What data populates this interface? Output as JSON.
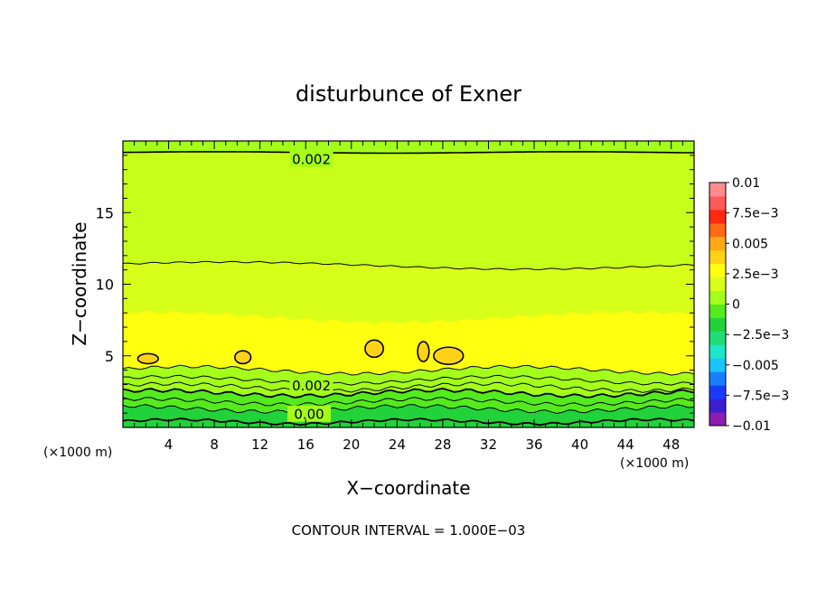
{
  "chart_data": {
    "type": "heatmap",
    "title": "disturbunce of Exner",
    "xlabel": "X−coordinate",
    "ylabel": "Z−coordinate",
    "x_unit": "(×1000 m)",
    "x_unit_right": "(×1000 m)",
    "xlim": [
      0,
      50
    ],
    "ylim": [
      0,
      20
    ],
    "x_ticks": [
      {
        "value": 4,
        "label": "4"
      },
      {
        "value": 8,
        "label": "8"
      },
      {
        "value": 12,
        "label": "12"
      },
      {
        "value": 16,
        "label": "16"
      },
      {
        "value": 20,
        "label": "20"
      },
      {
        "value": 24,
        "label": "24"
      },
      {
        "value": 28,
        "label": "28"
      },
      {
        "value": 32,
        "label": "32"
      },
      {
        "value": 36,
        "label": "36"
      },
      {
        "value": 40,
        "label": "40"
      },
      {
        "value": 44,
        "label": "44"
      },
      {
        "value": 48,
        "label": "48"
      }
    ],
    "y_ticks": [
      {
        "value": 5,
        "label": "5"
      },
      {
        "value": 10,
        "label": "10"
      },
      {
        "value": 15,
        "label": "15"
      }
    ],
    "colorbar": {
      "min": -0.01,
      "max": 0.01,
      "labels": [
        {
          "value": 0.01,
          "label": "0.01"
        },
        {
          "value": 0.0075,
          "label": "7.5e−3"
        },
        {
          "value": 0.005,
          "label": "0.005"
        },
        {
          "value": 0.0025,
          "label": "2.5e−3"
        },
        {
          "value": 0,
          "label": "0"
        },
        {
          "value": -0.0025,
          "label": "−2.5e−3"
        },
        {
          "value": -0.005,
          "label": "−0.005"
        },
        {
          "value": -0.0075,
          "label": "−7.5e−3"
        },
        {
          "value": -0.01,
          "label": "−0.01"
        }
      ],
      "colors": [
        "#8a1fb0",
        "#3a1fd0",
        "#1a3aff",
        "#1a7fff",
        "#19c4ff",
        "#1ee6c8",
        "#22dc7a",
        "#22d23a",
        "#55ea1e",
        "#a4ff1a",
        "#d8ff1a",
        "#ffff10",
        "#ffd218",
        "#ffaa14",
        "#ff6a14",
        "#ff2a10",
        "#ff5a5a",
        "#ff8c8c"
      ]
    },
    "contour_labels": [
      {
        "text": "0.002",
        "x": 16.5,
        "y": 18.7
      },
      {
        "text": "0.002",
        "x": 16.5,
        "y": 2.9
      },
      {
        "text": "0.00",
        "x": 16.3,
        "y": 0.9
      }
    ],
    "contour_interval_text": "CONTOUR INTERVAL = 1.000E−03",
    "colors": {
      "band_top": "#a4ff1a",
      "band_upper_mid": "#c8ff1a",
      "band_mid": "#d8ff1a",
      "band_core": "#ffff10",
      "band_low_1": "#a4ff1a",
      "band_low_2": "#55ea1e",
      "band_low_3": "#22d23a",
      "blob": "#ffd218"
    }
  }
}
